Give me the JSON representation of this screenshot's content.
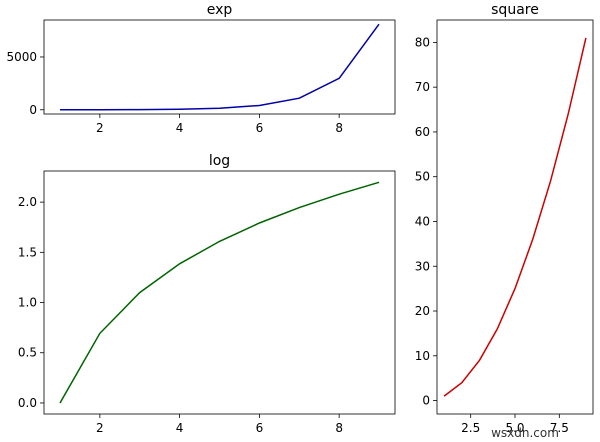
{
  "chart_data": [
    {
      "type": "line",
      "title": "exp",
      "xlabel": "",
      "ylabel": "",
      "x": [
        1,
        2,
        3,
        4,
        5,
        6,
        7,
        8,
        9
      ],
      "series": [
        {
          "name": "exp",
          "color": "#0000aa",
          "values": [
            2.72,
            7.39,
            20.09,
            54.6,
            148.41,
            403.43,
            1096.63,
            2980.96,
            8103.08
          ]
        }
      ],
      "xlim": [
        0.6,
        9.4
      ],
      "ylim": [
        -400,
        8500
      ],
      "xticks": [
        2,
        4,
        6,
        8
      ],
      "yticks": [
        0,
        5000
      ],
      "xtick_labels": [
        "2",
        "4",
        "6",
        "8"
      ],
      "ytick_labels": [
        "0",
        "5000"
      ],
      "grid": false
    },
    {
      "type": "line",
      "title": "log",
      "xlabel": "",
      "ylabel": "",
      "x": [
        1,
        2,
        3,
        4,
        5,
        6,
        7,
        8,
        9
      ],
      "series": [
        {
          "name": "log",
          "color": "#006400",
          "values": [
            0,
            0.693,
            1.099,
            1.386,
            1.609,
            1.792,
            1.946,
            2.079,
            2.197
          ]
        }
      ],
      "xlim": [
        0.6,
        9.4
      ],
      "ylim": [
        -0.11,
        2.31
      ],
      "xticks": [
        2,
        4,
        6,
        8
      ],
      "yticks": [
        0.0,
        0.5,
        1.0,
        1.5,
        2.0
      ],
      "xtick_labels": [
        "2",
        "4",
        "6",
        "8"
      ],
      "ytick_labels": [
        "0.0",
        "0.5",
        "1.0",
        "1.5",
        "2.0"
      ],
      "grid": false
    },
    {
      "type": "line",
      "title": "square",
      "xlabel": "",
      "ylabel": "",
      "x": [
        1,
        2,
        3,
        4,
        5,
        6,
        7,
        8,
        9
      ],
      "series": [
        {
          "name": "square",
          "color": "#cc0000",
          "values": [
            1,
            4,
            9,
            16,
            25,
            36,
            49,
            64,
            81
          ]
        }
      ],
      "xlim": [
        0.6,
        9.4
      ],
      "ylim": [
        -3,
        85
      ],
      "xticks": [
        2.5,
        5.0,
        7.5
      ],
      "yticks": [
        0,
        10,
        20,
        30,
        40,
        50,
        60,
        70,
        80
      ],
      "xtick_labels": [
        "2.5",
        "5.0",
        "7.5"
      ],
      "ytick_labels": [
        "0",
        "10",
        "20",
        "30",
        "40",
        "50",
        "60",
        "70",
        "80"
      ],
      "grid": false
    }
  ],
  "watermark": "wsxdn.com"
}
